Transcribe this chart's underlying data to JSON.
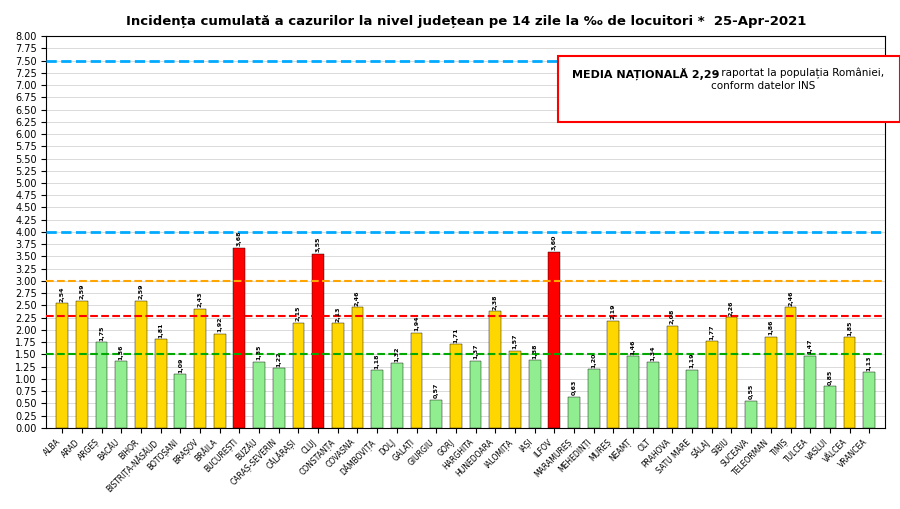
{
  "title": "Incidența cumulată a cazurilor la nivel județean pe 14 zile la ‰ de locuitori *  25-Apr-2021",
  "categories": [
    "ALBA",
    "ARAD",
    "ARGEȘ",
    "BACĂU",
    "BIHOR",
    "BISTRIȚA-NĂSĂUD",
    "BOTOȘANI",
    "BRAȘOV",
    "BRĂILA",
    "BUCUREȘTI",
    "BUZĂU",
    "CARAȘ-SEVERIN",
    "CĂLĂRAȘI",
    "CLUJ",
    "CONSTANȚA",
    "COVASNA",
    "DÂMBOVIȚA",
    "DOLJ",
    "GALAȚI",
    "GIURGIU",
    "GORJ",
    "HARGHITA",
    "HUNEDOARA",
    "IALOMIȚA",
    "IAȘI",
    "ILFOV",
    "MARAMUREȘ",
    "MEHEDINȚI",
    "MUREȘ",
    "NEAMȚ",
    "OLT",
    "PRAHOVA",
    "SATU MARE",
    "SĂLAJ",
    "SIBIU",
    "SUCEAVA",
    "TELEORMAN",
    "TIMIȘ",
    "TULCEA",
    "VASLUI",
    "VÂLCEA",
    "VRANCEA"
  ],
  "values": [
    2.54,
    2.59,
    1.75,
    1.36,
    2.59,
    1.81,
    1.09,
    2.43,
    1.92,
    3.68,
    1.35,
    1.22,
    2.15,
    3.55,
    2.13,
    2.46,
    1.18,
    1.32,
    1.94,
    0.57,
    1.71,
    1.37,
    2.38,
    1.57,
    1.38,
    3.6,
    0.63,
    1.2,
    2.19,
    1.46,
    1.34,
    2.08,
    1.19,
    1.77,
    2.26,
    0.55,
    1.86,
    2.46,
    1.47,
    0.85,
    1.85,
    1.13
  ],
  "colors": [
    "#FFD700",
    "#FFD700",
    "#90EE90",
    "#90EE90",
    "#FFD700",
    "#FFD700",
    "#90EE90",
    "#FFD700",
    "#FFD700",
    "#FF0000",
    "#90EE90",
    "#90EE90",
    "#FFD700",
    "#FF0000",
    "#FFD700",
    "#FFD700",
    "#90EE90",
    "#90EE90",
    "#FFD700",
    "#90EE90",
    "#FFD700",
    "#90EE90",
    "#FFD700",
    "#FFD700",
    "#90EE90",
    "#FF0000",
    "#90EE90",
    "#90EE90",
    "#FFD700",
    "#90EE90",
    "#90EE90",
    "#FFD700",
    "#90EE90",
    "#FFD700",
    "#FFD700",
    "#90EE90",
    "#FFD700",
    "#FFD700",
    "#90EE90",
    "#90EE90",
    "#FFD700",
    "#90EE90"
  ],
  "hline_green": 1.5,
  "hline_red": 2.29,
  "hline_orange": 3.0,
  "hline_blue1": 4.0,
  "hline_blue2": 7.5,
  "ylim": [
    0.0,
    8.0
  ],
  "yticks": [
    0.0,
    0.25,
    0.5,
    0.75,
    1.0,
    1.25,
    1.5,
    1.75,
    2.0,
    2.25,
    2.5,
    2.75,
    3.0,
    3.25,
    3.5,
    3.75,
    4.0,
    4.25,
    4.5,
    4.75,
    5.0,
    5.25,
    5.5,
    5.75,
    6.0,
    6.25,
    6.5,
    6.75,
    7.0,
    7.25,
    7.5,
    7.75,
    8.0
  ],
  "legend_text_bold": "MEDIA NAȚIONALĂ 2,29",
  "legend_text_normal": " - raportat la populația României,\nconform datelor INS",
  "background_color": "#FFFFFF",
  "plot_bg_color": "#FFFFFF",
  "bar_edge_color": "#000000",
  "bar_edge_width": 0.3
}
